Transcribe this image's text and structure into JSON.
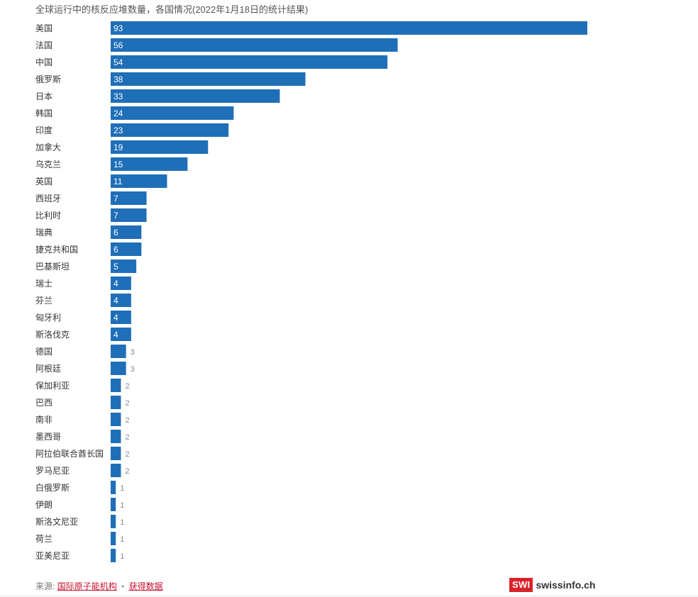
{
  "chart_data": {
    "type": "bar",
    "orientation": "horizontal",
    "title": "全球运行中的核反应堆数量，各国情况(2022年1月18日的统计结果)",
    "categories": [
      "美国",
      "法国",
      "中国",
      "俄罗斯",
      "日本",
      "韩国",
      "印度",
      "加拿大",
      "乌克兰",
      "英国",
      "西班牙",
      "比利时",
      "瑞典",
      "捷克共和国",
      "巴基斯坦",
      "瑞士",
      "芬兰",
      "匈牙利",
      "斯洛伐克",
      "德国",
      "阿根廷",
      "保加利亚",
      "巴西",
      "南非",
      "墨西哥",
      "阿拉伯联合酋长国",
      "罗马尼亚",
      "白俄罗斯",
      "伊朗",
      "斯洛文尼亚",
      "荷兰",
      "亚美尼亚"
    ],
    "values": [
      93,
      56,
      54,
      38,
      33,
      24,
      23,
      19,
      15,
      11,
      7,
      7,
      6,
      6,
      5,
      4,
      4,
      4,
      4,
      3,
      3,
      2,
      2,
      2,
      2,
      2,
      2,
      1,
      1,
      1,
      1,
      1
    ],
    "xlim": [
      0,
      93
    ],
    "bar_color": "#1f6eb8",
    "grid": false
  },
  "footer": {
    "source_label": "来源:",
    "source_link": "国际原子能机构",
    "separator": "•",
    "data_link": "获得数据"
  },
  "logo": {
    "box_text": "SWI",
    "text": "swissinfo.ch",
    "color": "#d8232a"
  }
}
